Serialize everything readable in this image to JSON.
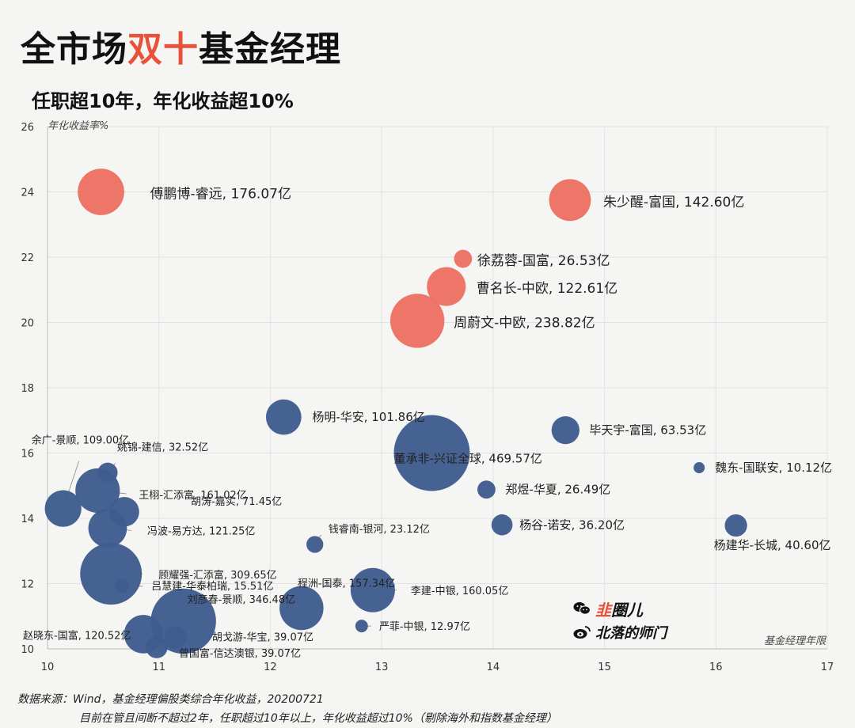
{
  "title": {
    "part1": "全市场",
    "part2": "双十",
    "part3": "基金经理"
  },
  "subtitle": "任职超10年，年化收益超10%",
  "footer": {
    "source": "数据来源：Wind，基金经理偏股类综合年化收益，20200721",
    "note": "目前在管且间断不超过2年，任职超过10年以上，年化收益超过10%（剔除海外和指数基金经理）"
  },
  "watermark": {
    "brand1_a": "韭",
    "brand1_b": "圈儿",
    "brand2": "北落的师门",
    "icon1": "wechat-icon",
    "icon2": "weibo-icon"
  },
  "colors": {
    "red": "#ec7062",
    "blue": "#3e5c8f",
    "accent": "#e8513a"
  },
  "chart_data": {
    "type": "scatter",
    "bubble": true,
    "xlabel": "基金经理年限",
    "ylabel": "年化收益率%",
    "xlim": [
      10,
      17
    ],
    "ylim": [
      10,
      26
    ],
    "xticks": [
      "10",
      "11",
      "12",
      "13",
      "14",
      "15",
      "16",
      "17"
    ],
    "yticks": [
      "10",
      "12",
      "14",
      "16",
      "18",
      "20",
      "22",
      "24",
      "26"
    ],
    "grid": true,
    "points": [
      {
        "label": "傅鹏博-睿远, 176.07亿",
        "x": 10.48,
        "y": 24.0,
        "size": 176.07,
        "color": "red"
      },
      {
        "label": "朱少醒-富国, 142.60亿",
        "x": 14.69,
        "y": 23.75,
        "size": 142.6,
        "color": "red"
      },
      {
        "label": "徐荔蓉-国富, 26.53亿",
        "x": 13.73,
        "y": 21.95,
        "size": 26.53,
        "color": "red"
      },
      {
        "label": "曹名长-中欧, 122.61亿",
        "x": 13.58,
        "y": 21.1,
        "size": 122.61,
        "color": "red"
      },
      {
        "label": "周蔚文-中欧, 238.82亿",
        "x": 13.32,
        "y": 20.05,
        "size": 238.82,
        "color": "red"
      },
      {
        "label": "杨明-华安, 101.86亿",
        "x": 12.12,
        "y": 17.1,
        "size": 101.86,
        "color": "blue"
      },
      {
        "label": "董承非-兴证全球, 469.57亿",
        "x": 13.45,
        "y": 16.0,
        "size": 469.57,
        "color": "blue"
      },
      {
        "label": "毕天宇-富国, 63.53亿",
        "x": 14.65,
        "y": 16.7,
        "size": 63.53,
        "color": "blue"
      },
      {
        "label": "魏东-国联安, 10.12亿",
        "x": 15.85,
        "y": 15.55,
        "size": 10.12,
        "color": "blue"
      },
      {
        "label": "郑煜-华夏, 26.49亿",
        "x": 13.94,
        "y": 14.88,
        "size": 26.49,
        "color": "blue"
      },
      {
        "label": "杨谷-诺安, 36.20亿",
        "x": 14.08,
        "y": 13.8,
        "size": 36.2,
        "color": "blue"
      },
      {
        "label": "杨建华-长城, 40.60亿",
        "x": 16.18,
        "y": 13.78,
        "size": 40.6,
        "color": "blue"
      },
      {
        "label": "余广-景顺, 109.00亿",
        "x": 10.14,
        "y": 14.3,
        "size": 109.0,
        "color": "blue"
      },
      {
        "label": "姚锦-建信, 32.52亿",
        "x": 10.54,
        "y": 15.4,
        "size": 32.52,
        "color": "blue"
      },
      {
        "label": "王栩-汇添富, 161.02亿",
        "x": 10.45,
        "y": 14.85,
        "size": 161.02,
        "color": "blue"
      },
      {
        "label": "胡涛-嘉实, 71.45亿",
        "x": 10.69,
        "y": 14.2,
        "size": 71.45,
        "color": "blue"
      },
      {
        "label": "冯波-易方达, 121.25亿",
        "x": 10.54,
        "y": 13.7,
        "size": 121.25,
        "color": "blue"
      },
      {
        "label": "钱睿南-银河, 23.12亿",
        "x": 12.4,
        "y": 13.2,
        "size": 23.12,
        "color": "blue"
      },
      {
        "label": "顾耀强-汇添富, 309.65亿",
        "x": 10.57,
        "y": 12.3,
        "size": 309.65,
        "color": "blue"
      },
      {
        "label": "吕慧建-华泰柏瑞, 15.51亿",
        "x": 10.67,
        "y": 11.92,
        "size": 15.51,
        "color": "blue"
      },
      {
        "label": "程洲-国泰, 157.34亿",
        "x": 12.28,
        "y": 11.25,
        "size": 157.34,
        "color": "blue"
      },
      {
        "label": "李建-中银, 160.05亿",
        "x": 12.92,
        "y": 11.8,
        "size": 160.05,
        "color": "blue"
      },
      {
        "label": "刘彦春-景顺, 346.48亿",
        "x": 11.22,
        "y": 10.85,
        "size": 346.48,
        "color": "blue"
      },
      {
        "label": "严菲-中银, 12.97亿",
        "x": 12.82,
        "y": 10.7,
        "size": 12.97,
        "color": "blue"
      },
      {
        "label": "胡戈游-华宝, 39.07亿",
        "x": 11.15,
        "y": 10.35,
        "size": 39.07,
        "color": "blue"
      },
      {
        "label": "赵晓东-国富, 120.52亿",
        "x": 10.86,
        "y": 10.45,
        "size": 120.52,
        "color": "blue"
      },
      {
        "label": "曾国富-信达澳银, 39.07亿",
        "x": 10.98,
        "y": 10.05,
        "size": 39.07,
        "color": "blue"
      }
    ]
  }
}
